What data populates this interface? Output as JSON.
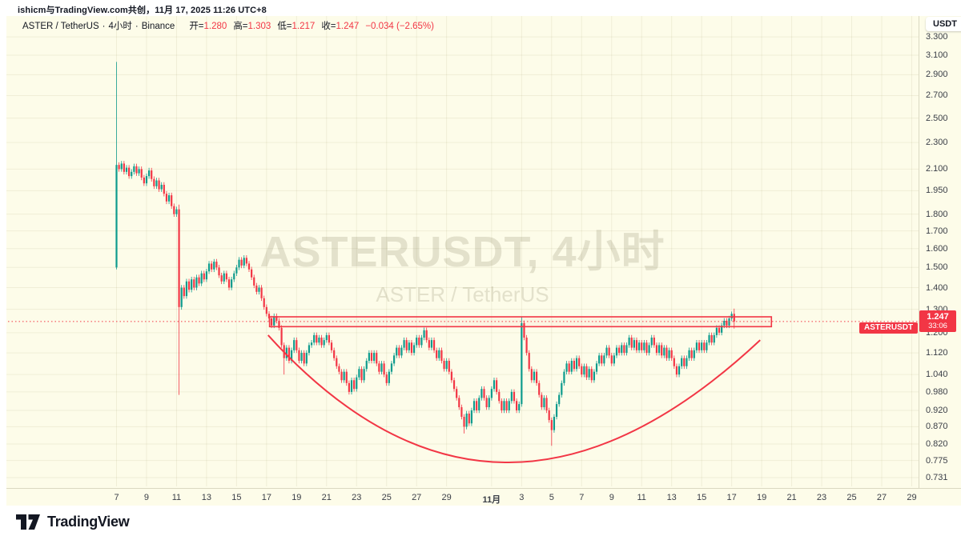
{
  "attribution": "ishicm与TradingView.com共创，11月 17, 2025 11:26 UTC+8",
  "legend": {
    "symbol": "ASTER / TetherUS",
    "separator": "·",
    "interval": "4小时",
    "exchange": "Binance",
    "ohlc": [
      {
        "label": "开=",
        "value": "1.280"
      },
      {
        "label": "高=",
        "value": "1.303"
      },
      {
        "label": "低=",
        "value": "1.217"
      },
      {
        "label": "收=",
        "value": "1.247"
      }
    ],
    "change": "−0.034 (−2.65%)"
  },
  "watermark": {
    "title": "ASTERUSDT, 4小时",
    "subtitle": "ASTER / TetherUS"
  },
  "price_axis": {
    "currency_button": "USDT",
    "price_label": {
      "symbol": "ASTERUSDT",
      "price": "1.247",
      "countdown": "33:06"
    }
  },
  "time_axis": {
    "labels": [
      {
        "t": "7",
        "d": 0
      },
      {
        "t": "9",
        "d": 2
      },
      {
        "t": "11",
        "d": 4
      },
      {
        "t": "13",
        "d": 6
      },
      {
        "t": "15",
        "d": 8
      },
      {
        "t": "17",
        "d": 10
      },
      {
        "t": "19",
        "d": 12
      },
      {
        "t": "21",
        "d": 14
      },
      {
        "t": "23",
        "d": 16
      },
      {
        "t": "25",
        "d": 18
      },
      {
        "t": "27",
        "d": 20
      },
      {
        "t": "29",
        "d": 22
      },
      {
        "t": "11月",
        "d": 25,
        "bold": true
      },
      {
        "t": "3",
        "d": 27
      },
      {
        "t": "5",
        "d": 29
      },
      {
        "t": "7",
        "d": 31
      },
      {
        "t": "9",
        "d": 33
      },
      {
        "t": "11",
        "d": 35
      },
      {
        "t": "13",
        "d": 37
      },
      {
        "t": "15",
        "d": 39
      },
      {
        "t": "17",
        "d": 41
      },
      {
        "t": "19",
        "d": 43
      },
      {
        "t": "21",
        "d": 45
      },
      {
        "t": "23",
        "d": 47
      },
      {
        "t": "25",
        "d": 49
      },
      {
        "t": "27",
        "d": 51
      },
      {
        "t": "29",
        "d": 53
      }
    ]
  },
  "logo": {
    "text": "TradingView"
  },
  "colors": {
    "pane_bg": "#FDFCE9",
    "grid": "rgba(124,120,60,0.10)",
    "up": "#0E9B8D",
    "down": "#F23645",
    "drawing": "#F23645",
    "badge_bg": "#F23645",
    "text": "#131722"
  },
  "chart_data": {
    "type": "candlestick",
    "symbol": "ASTERUSDT",
    "interval": "4小时",
    "exchange": "Binance",
    "scale": "log",
    "title": "ASTER / TetherUS · 4小时 · Binance",
    "y_ticks": [
      "3.300",
      "3.100",
      "2.900",
      "2.700",
      "2.500",
      "2.300",
      "2.100",
      "1.950",
      "1.800",
      "1.700",
      "1.600",
      "1.500",
      "1.400",
      "1.300",
      "1.200",
      "1.120",
      "1.040",
      "0.980",
      "0.920",
      "0.870",
      "0.820",
      "0.775",
      "0.731"
    ],
    "ylim": [
      0.7,
      3.35
    ],
    "x_start_label": "10月7日",
    "x_end_label": "11月17日",
    "last_bar": {
      "open": 1.28,
      "high": 1.303,
      "low": 1.217,
      "close": 1.247,
      "change": -0.034,
      "change_pct": -2.65
    },
    "current_price": 1.247,
    "closes": [
      2.13,
      2.1,
      2.14,
      2.08,
      2.11,
      2.05,
      2.08,
      2.12,
      2.07,
      2.1,
      2.04,
      2.0,
      2.05,
      2.09,
      2.03,
      1.98,
      2.02,
      1.96,
      1.99,
      1.93,
      1.88,
      1.92,
      1.85,
      1.8,
      1.83,
      1.31,
      1.4,
      1.36,
      1.43,
      1.39,
      1.44,
      1.4,
      1.45,
      1.42,
      1.47,
      1.44,
      1.48,
      1.52,
      1.49,
      1.53,
      1.5,
      1.46,
      1.43,
      1.47,
      1.44,
      1.4,
      1.44,
      1.47,
      1.5,
      1.54,
      1.51,
      1.55,
      1.52,
      1.49,
      1.45,
      1.41,
      1.38,
      1.4,
      1.35,
      1.31,
      1.28,
      1.26,
      1.23,
      1.27,
      1.25,
      1.22,
      1.15,
      1.1,
      1.14,
      1.09,
      1.13,
      1.17,
      1.13,
      1.09,
      1.12,
      1.08,
      1.12,
      1.15,
      1.16,
      1.19,
      1.16,
      1.18,
      1.15,
      1.17,
      1.19,
      1.16,
      1.13,
      1.1,
      1.07,
      1.05,
      1.02,
      1.05,
      1.01,
      0.98,
      1.02,
      0.99,
      1.03,
      1.06,
      1.02,
      1.06,
      1.09,
      1.12,
      1.09,
      1.12,
      1.08,
      1.05,
      1.08,
      1.04,
      1.01,
      1.05,
      1.08,
      1.11,
      1.14,
      1.11,
      1.14,
      1.17,
      1.13,
      1.16,
      1.12,
      1.15,
      1.18,
      1.15,
      1.18,
      1.21,
      1.17,
      1.14,
      1.17,
      1.13,
      1.1,
      1.13,
      1.09,
      1.06,
      1.09,
      1.05,
      1.02,
      0.99,
      0.96,
      0.93,
      0.9,
      0.87,
      0.91,
      0.88,
      0.92,
      0.95,
      0.92,
      0.96,
      0.99,
      0.96,
      0.93,
      0.96,
      0.99,
      1.02,
      0.98,
      0.95,
      0.92,
      0.95,
      0.92,
      0.95,
      0.98,
      0.95,
      0.92,
      0.94,
      1.24,
      1.18,
      1.12,
      1.06,
      1.02,
      1.05,
      1.01,
      0.97,
      0.93,
      0.96,
      0.92,
      0.89,
      0.86,
      0.9,
      0.94,
      0.97,
      1.01,
      1.05,
      1.08,
      1.05,
      1.09,
      1.06,
      1.1,
      1.07,
      1.04,
      1.07,
      1.03,
      1.06,
      1.02,
      1.05,
      1.08,
      1.11,
      1.08,
      1.11,
      1.14,
      1.11,
      1.08,
      1.11,
      1.14,
      1.12,
      1.15,
      1.12,
      1.15,
      1.18,
      1.14,
      1.17,
      1.13,
      1.16,
      1.13,
      1.16,
      1.12,
      1.15,
      1.18,
      1.15,
      1.12,
      1.15,
      1.11,
      1.14,
      1.1,
      1.13,
      1.1,
      1.07,
      1.04,
      1.07,
      1.1,
      1.07,
      1.1,
      1.13,
      1.1,
      1.13,
      1.16,
      1.13,
      1.16,
      1.13,
      1.16,
      1.19,
      1.16,
      1.19,
      1.22,
      1.2,
      1.23,
      1.25,
      1.23,
      1.26,
      1.28,
      1.247
    ],
    "default_wick_pct": 0.009,
    "overrides": {
      "0": {
        "o": 1.5,
        "h": 3.03,
        "l": 1.49,
        "c": 2.13
      },
      "25": {
        "o": 1.83,
        "h": 1.86,
        "l": 0.97,
        "c": 1.31
      },
      "67": {
        "l": 1.04
      },
      "139": {
        "l": 0.85
      },
      "162": {
        "h": 1.267
      },
      "174": {
        "l": 0.815
      },
      "246": {
        "h": 1.29
      },
      "247": {
        "o": 1.28,
        "h": 1.303,
        "l": 1.217,
        "c": 1.247
      }
    },
    "drawings": {
      "resistance_rect": {
        "day_start": 10.2,
        "day_end": 43.65,
        "price_top": 1.267,
        "price_bottom": 1.225
      },
      "cup_arc": {
        "day_start": 10.1,
        "price_start": 1.19,
        "day_mid": 25.9,
        "price_mid": 0.77,
        "day_end": 42.9,
        "price_end": 1.17
      },
      "price_line": 1.247
    }
  }
}
